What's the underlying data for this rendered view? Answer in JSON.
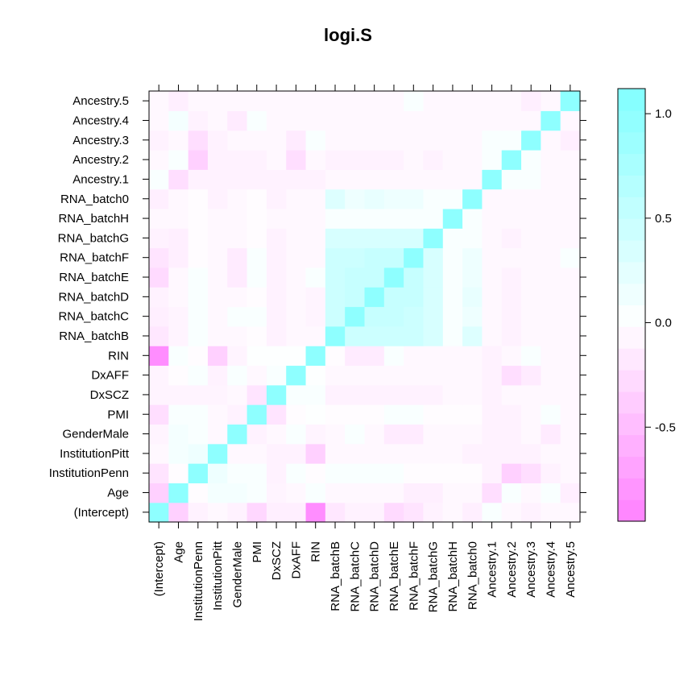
{
  "chart_data": {
    "type": "heatmap",
    "title": "logi.S",
    "labels": [
      "(Intercept)",
      "Age",
      "InstitutionPenn",
      "InstitutionPitt",
      "GenderMale",
      "PMI",
      "DxSCZ",
      "DxAFF",
      "RIN",
      "RNA_batchB",
      "RNA_batchC",
      "RNA_batchD",
      "RNA_batchE",
      "RNA_batchF",
      "RNA_batchG",
      "RNA_batchH",
      "RNA_batch0",
      "Ancestry.1",
      "Ancestry.2",
      "Ancestry.3",
      "Ancestry.4",
      "Ancestry.5"
    ],
    "colorbar": {
      "range": [
        -0.95,
        1.12
      ],
      "ticks": [
        -0.5,
        0.0,
        0.5,
        1.0
      ],
      "tick_labels": [
        "-0.5",
        "0.0",
        "0.5",
        "1.0"
      ],
      "low_color": "#ff80ff",
      "mid_color": "#ffffff",
      "high_color": "#80ffff"
    },
    "values": [
      [
        1.0,
        -0.35,
        -0.1,
        -0.05,
        -0.1,
        -0.3,
        -0.12,
        -0.12,
        -0.85,
        -0.18,
        -0.1,
        -0.1,
        -0.28,
        -0.2,
        -0.1,
        -0.05,
        -0.12,
        0.05,
        -0.05,
        -0.1,
        -0.05,
        -0.05
      ],
      [
        -0.35,
        1.0,
        -0.02,
        0.1,
        0.1,
        0.05,
        -0.08,
        -0.05,
        0.05,
        -0.05,
        -0.05,
        -0.05,
        -0.05,
        -0.12,
        -0.12,
        -0.05,
        -0.05,
        -0.25,
        0.05,
        -0.05,
        0.05,
        -0.12
      ],
      [
        -0.2,
        -0.02,
        1.0,
        0.15,
        0.05,
        0.05,
        -0.1,
        0.05,
        -0.02,
        0.05,
        0.05,
        0.05,
        0.05,
        -0.02,
        -0.02,
        -0.02,
        -0.02,
        -0.1,
        -0.35,
        -0.25,
        -0.1,
        -0.05
      ],
      [
        -0.05,
        0.1,
        0.15,
        1.0,
        -0.05,
        -0.05,
        -0.1,
        -0.1,
        -0.35,
        -0.05,
        -0.05,
        -0.05,
        -0.05,
        -0.05,
        -0.05,
        -0.05,
        -0.1,
        -0.1,
        -0.1,
        -0.1,
        -0.05,
        -0.05
      ],
      [
        -0.08,
        0.1,
        0.05,
        -0.05,
        1.0,
        -0.1,
        -0.05,
        0.05,
        -0.08,
        -0.05,
        0.05,
        -0.05,
        -0.15,
        -0.15,
        -0.05,
        -0.05,
        -0.05,
        -0.1,
        -0.1,
        -0.05,
        -0.15,
        -0.05
      ],
      [
        -0.25,
        0.05,
        0.05,
        -0.05,
        -0.1,
        1.0,
        -0.2,
        -0.02,
        0.02,
        -0.02,
        -0.02,
        -0.02,
        0.05,
        0.05,
        -0.02,
        -0.02,
        -0.02,
        -0.1,
        -0.1,
        -0.05,
        0.05,
        -0.05
      ],
      [
        -0.08,
        -0.08,
        -0.08,
        -0.08,
        -0.05,
        -0.2,
        1.0,
        0.05,
        0.05,
        -0.1,
        -0.1,
        -0.1,
        -0.1,
        -0.1,
        -0.1,
        -0.05,
        -0.05,
        -0.1,
        -0.05,
        -0.05,
        -0.05,
        -0.05
      ],
      [
        -0.08,
        -0.02,
        0.05,
        -0.1,
        0.05,
        -0.05,
        0.05,
        1.0,
        0.02,
        -0.05,
        -0.05,
        -0.05,
        -0.05,
        -0.05,
        -0.05,
        -0.05,
        -0.05,
        -0.1,
        -0.25,
        -0.15,
        -0.05,
        -0.05
      ],
      [
        -0.85,
        0.05,
        -0.02,
        -0.35,
        -0.08,
        0.02,
        0.02,
        0.02,
        1.0,
        -0.02,
        -0.15,
        -0.15,
        0.05,
        -0.05,
        -0.05,
        -0.05,
        -0.05,
        -0.1,
        -0.05,
        0.05,
        -0.05,
        -0.05
      ],
      [
        -0.18,
        -0.08,
        0.05,
        -0.05,
        -0.05,
        -0.02,
        -0.1,
        -0.05,
        -0.05,
        1.0,
        0.45,
        0.45,
        0.45,
        0.45,
        0.35,
        0.05,
        0.3,
        -0.05,
        -0.1,
        -0.05,
        -0.05,
        -0.05
      ],
      [
        -0.12,
        -0.08,
        0.05,
        -0.05,
        0.05,
        0.05,
        -0.1,
        -0.05,
        -0.08,
        0.45,
        1.0,
        0.5,
        0.5,
        0.45,
        0.35,
        0.05,
        0.15,
        -0.05,
        -0.1,
        -0.05,
        -0.05,
        -0.05
      ],
      [
        -0.1,
        -0.05,
        0.05,
        -0.05,
        -0.05,
        -0.02,
        -0.1,
        -0.05,
        -0.08,
        0.45,
        0.5,
        1.0,
        0.5,
        0.5,
        0.35,
        0.05,
        0.2,
        -0.05,
        -0.1,
        -0.05,
        -0.05,
        -0.05
      ],
      [
        -0.28,
        -0.05,
        0.05,
        -0.05,
        -0.15,
        0.05,
        -0.1,
        -0.05,
        0.05,
        0.45,
        0.5,
        0.5,
        1.0,
        0.5,
        0.35,
        0.05,
        0.15,
        -0.05,
        -0.1,
        -0.05,
        -0.05,
        -0.05
      ],
      [
        -0.2,
        -0.12,
        -0.02,
        -0.05,
        -0.15,
        0.05,
        -0.1,
        -0.05,
        -0.05,
        0.45,
        0.45,
        0.5,
        0.5,
        1.0,
        0.35,
        0.05,
        0.15,
        -0.05,
        -0.05,
        -0.05,
        -0.05,
        0.05
      ],
      [
        -0.1,
        -0.12,
        -0.02,
        -0.05,
        -0.05,
        -0.02,
        -0.1,
        -0.05,
        -0.05,
        0.35,
        0.35,
        0.35,
        0.35,
        0.35,
        1.0,
        0.05,
        0.05,
        -0.05,
        -0.1,
        -0.05,
        -0.05,
        -0.05
      ],
      [
        -0.05,
        -0.05,
        -0.02,
        -0.05,
        -0.05,
        -0.02,
        -0.05,
        -0.05,
        -0.05,
        0.05,
        0.05,
        0.05,
        0.05,
        0.05,
        0.05,
        1.0,
        0.05,
        -0.05,
        -0.05,
        -0.05,
        -0.05,
        -0.05
      ],
      [
        -0.12,
        -0.05,
        -0.02,
        -0.1,
        -0.05,
        -0.02,
        -0.1,
        -0.05,
        -0.05,
        0.3,
        0.15,
        0.2,
        0.15,
        0.15,
        0.05,
        0.05,
        1.0,
        -0.05,
        -0.05,
        -0.05,
        -0.05,
        -0.05
      ],
      [
        0.05,
        -0.25,
        -0.1,
        -0.1,
        -0.1,
        -0.1,
        -0.1,
        -0.1,
        -0.1,
        -0.05,
        -0.05,
        -0.05,
        -0.05,
        -0.05,
        -0.05,
        -0.05,
        -0.05,
        1.0,
        0.05,
        0.05,
        -0.05,
        -0.05
      ],
      [
        -0.05,
        0.05,
        -0.35,
        -0.1,
        -0.1,
        -0.1,
        -0.05,
        -0.25,
        -0.05,
        -0.1,
        -0.1,
        -0.1,
        -0.1,
        -0.05,
        -0.1,
        -0.05,
        -0.05,
        0.05,
        1.0,
        0.05,
        -0.05,
        -0.05
      ],
      [
        -0.1,
        -0.05,
        -0.25,
        -0.1,
        -0.05,
        -0.05,
        -0.05,
        -0.15,
        0.05,
        -0.05,
        -0.05,
        -0.05,
        -0.05,
        -0.05,
        -0.05,
        -0.05,
        -0.05,
        0.05,
        0.05,
        1.0,
        -0.05,
        -0.12
      ],
      [
        -0.05,
        0.1,
        -0.1,
        -0.05,
        -0.15,
        0.05,
        -0.05,
        -0.05,
        -0.05,
        -0.05,
        -0.05,
        -0.05,
        -0.05,
        -0.05,
        -0.05,
        -0.05,
        -0.05,
        -0.05,
        -0.05,
        -0.05,
        1.0,
        -0.05
      ],
      [
        -0.05,
        -0.12,
        -0.05,
        -0.05,
        -0.05,
        -0.05,
        -0.05,
        -0.05,
        -0.05,
        -0.05,
        -0.05,
        -0.05,
        -0.05,
        0.05,
        -0.05,
        -0.05,
        -0.05,
        -0.05,
        -0.05,
        -0.12,
        -0.05,
        1.0
      ]
    ]
  }
}
